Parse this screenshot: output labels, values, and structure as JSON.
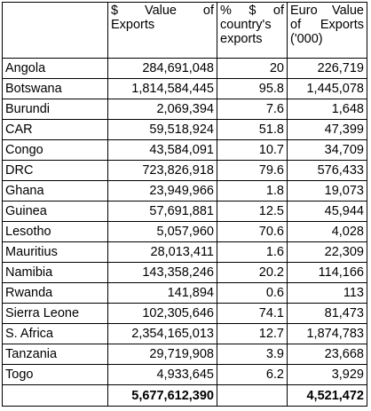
{
  "table": {
    "headers": [
      "",
      "$ Value of Exports",
      "% $ of country's exports",
      "Euro Value of Exports ('000)"
    ],
    "rows": [
      {
        "country": "Angola",
        "usd": "284,691,048",
        "pct": "20",
        "eur": "226,719"
      },
      {
        "country": "Botswana",
        "usd": "1,814,584,445",
        "pct": "95.8",
        "eur": "1,445,078"
      },
      {
        "country": "Burundi",
        "usd": "2,069,394",
        "pct": "7.6",
        "eur": "1,648"
      },
      {
        "country": "CAR",
        "usd": "59,518,924",
        "pct": "51.8",
        "eur": "47,399"
      },
      {
        "country": "Congo",
        "usd": "43,584,091",
        "pct": "10.7",
        "eur": "34,709"
      },
      {
        "country": "DRC",
        "usd": "723,826,918",
        "pct": "79.6",
        "eur": "576,433"
      },
      {
        "country": "Ghana",
        "usd": "23,949,966",
        "pct": "1.8",
        "eur": "19,073"
      },
      {
        "country": "Guinea",
        "usd": "57,691,881",
        "pct": "12.5",
        "eur": "45,944"
      },
      {
        "country": "Lesotho",
        "usd": "5,057,960",
        "pct": "70.6",
        "eur": "4,028"
      },
      {
        "country": "Mauritius",
        "usd": "28,013,411",
        "pct": "1.6",
        "eur": "22,309"
      },
      {
        "country": "Namibia",
        "usd": "143,358,246",
        "pct": "20.2",
        "eur": "114,166"
      },
      {
        "country": "Rwanda",
        "usd": "141,894",
        "pct": "0.6",
        "eur": "113"
      },
      {
        "country": "Sierra Leone",
        "usd": "102,305,646",
        "pct": "74.1",
        "eur": "81,473"
      },
      {
        "country": "S. Africa",
        "usd": "2,354,165,013",
        "pct": "12.7",
        "eur": "1,874,783"
      },
      {
        "country": "Tanzania",
        "usd": "29,719,908",
        "pct": "3.9",
        "eur": "23,668"
      },
      {
        "country": "Togo",
        "usd": "4,933,645",
        "pct": "6.2",
        "eur": "3,929"
      }
    ],
    "total": {
      "country": "",
      "usd": "5,677,612,390",
      "pct": "",
      "eur": "4,521,472"
    }
  }
}
